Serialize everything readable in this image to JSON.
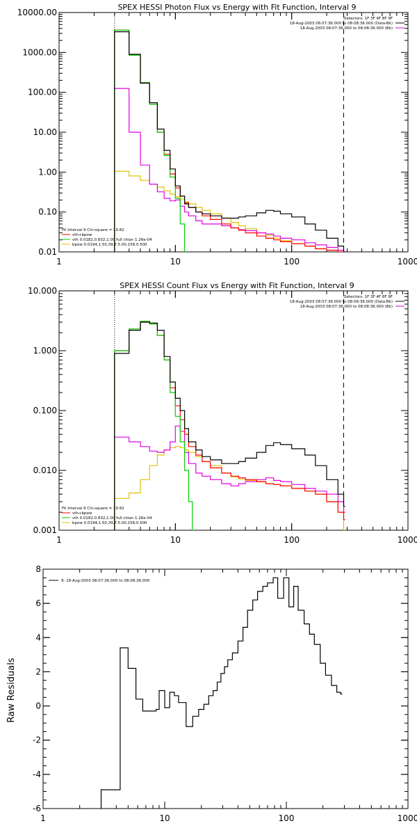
{
  "colors": {
    "data": "#000000",
    "total": "#ff0000",
    "vth": "#00d000",
    "bpow": "#e0c000",
    "background": "#e000e0"
  },
  "chart_data": [
    {
      "type": "line",
      "title": "SPEX HESSI Photon Flux vs Energy with Fit Function, Interval 9",
      "xscale": "log",
      "yscale": "log",
      "xlim": [
        1,
        1000
      ],
      "ylim": [
        0.01,
        10000
      ],
      "xticks": [
        "1",
        "10",
        "100",
        "1000"
      ],
      "yticks": [
        "0.01",
        "0.10",
        "1.00",
        "10.00",
        "100.00",
        "1000.00",
        "10000.00"
      ],
      "vlines": [
        {
          "x": 3,
          "style": "dotted"
        },
        {
          "x": 280,
          "style": "dashed"
        }
      ],
      "legend_top_right": [
        {
          "text": "Detectors: 1F 3F 4F 8F 9F",
          "color": "#000000"
        },
        {
          "text": "18-Aug-2003 08:07:36.000 to 08:08:36.000 (Data-Bk)",
          "color": "#000000"
        },
        {
          "text": "18-Aug-2003 08:07:36.000 to 08:08:36.000 (Bk)",
          "color": "#e000e0"
        }
      ],
      "legend_bottom_left": [
        {
          "text": "Fit Interval 9   Chi-square = 19.82",
          "color": "#000000"
        },
        {
          "text": "vth+bpow",
          "color": "#ff0000"
        },
        {
          "text": "vth 0.0182,0.832,1.00  full chian 1.26e-04",
          "color": "#00d000"
        },
        {
          "text": "bpow 0.0194,1.50,39.7,5.00,158,0.500",
          "color": "#e0c000"
        }
      ],
      "series": [
        {
          "role": "data",
          "x": [
            3,
            4,
            5,
            6,
            7,
            8,
            9,
            10,
            11,
            12,
            13,
            15,
            17,
            20,
            25,
            30,
            35,
            40,
            50,
            60,
            70,
            80,
            100,
            130,
            160,
            200,
            250,
            280
          ],
          "y": [
            3300,
            900,
            170,
            55,
            12,
            3.5,
            1.2,
            0.45,
            0.25,
            0.16,
            0.13,
            0.1,
            0.09,
            0.08,
            0.07,
            0.07,
            0.075,
            0.08,
            0.095,
            0.11,
            0.105,
            0.09,
            0.075,
            0.05,
            0.035,
            0.022,
            0.014,
            0.01
          ]
        },
        {
          "role": "total",
          "x": [
            3,
            4,
            5,
            6,
            7,
            8,
            9,
            10,
            11,
            12,
            13,
            15,
            17,
            20,
            25,
            30,
            35,
            40,
            50,
            60,
            70,
            80,
            100,
            130,
            160,
            200,
            250,
            280
          ],
          "y": [
            3600,
            850,
            175,
            50,
            10,
            2.8,
            0.9,
            0.4,
            0.25,
            0.17,
            0.13,
            0.1,
            0.08,
            0.065,
            0.05,
            0.04,
            0.035,
            0.03,
            0.025,
            0.022,
            0.02,
            0.018,
            0.016,
            0.014,
            0.012,
            0.011,
            0.01,
            0.01
          ]
        },
        {
          "role": "vth",
          "x": [
            3,
            4,
            5,
            6,
            7,
            8,
            9,
            10,
            11,
            12
          ],
          "y": [
            3600,
            850,
            175,
            50,
            10,
            2.6,
            0.75,
            0.22,
            0.05,
            0.01
          ]
        },
        {
          "role": "bpow",
          "x": [
            3,
            4,
            5,
            6,
            7,
            8,
            9,
            10,
            11,
            12,
            13,
            15,
            17,
            20,
            25,
            30,
            35,
            40,
            50,
            60,
            70,
            80,
            100,
            130,
            160,
            200,
            250,
            280
          ],
          "y": [
            1.05,
            0.8,
            0.62,
            0.5,
            0.42,
            0.34,
            0.28,
            0.24,
            0.21,
            0.18,
            0.16,
            0.13,
            0.11,
            0.09,
            0.07,
            0.055,
            0.045,
            0.038,
            0.03,
            0.026,
            0.022,
            0.019,
            0.016,
            0.014,
            0.012,
            0.011,
            0.01,
            0.01
          ]
        },
        {
          "role": "background",
          "x": [
            3,
            4,
            5,
            6,
            7,
            8,
            9,
            10,
            11,
            12,
            13,
            15,
            17,
            20,
            25,
            30,
            35,
            40,
            50,
            60,
            70,
            80,
            100,
            130,
            160,
            200,
            250,
            280
          ],
          "y": [
            125,
            10,
            1.5,
            0.5,
            0.32,
            0.22,
            0.19,
            0.2,
            0.14,
            0.1,
            0.08,
            0.06,
            0.05,
            0.05,
            0.045,
            0.04,
            0.036,
            0.034,
            0.03,
            0.028,
            0.025,
            0.022,
            0.02,
            0.017,
            0.015,
            0.013,
            0.011,
            0.01
          ]
        }
      ]
    },
    {
      "type": "line",
      "title": "SPEX HESSI Count Flux vs Energy with Fit Function, Interval 9",
      "xscale": "log",
      "yscale": "log",
      "xlim": [
        1,
        1000
      ],
      "ylim": [
        0.001,
        10
      ],
      "xticks": [
        "1",
        "10",
        "100",
        "1000"
      ],
      "yticks": [
        "0.001",
        "0.010",
        "0.100",
        "1.000",
        "10.000"
      ],
      "vlines": [
        {
          "x": 3,
          "style": "dotted"
        },
        {
          "x": 280,
          "style": "dashed"
        }
      ],
      "legend_top_right": [
        {
          "text": "Detectors: 1F 3F 4F 8F 9F",
          "color": "#000000"
        },
        {
          "text": "18-Aug-2003 08:07:36.000 to 08:08:36.000 (Data-Bk)",
          "color": "#000000"
        },
        {
          "text": "18-Aug-2003 08:07:36.000 to 08:08:36.000 (Bk)",
          "color": "#e000e0"
        }
      ],
      "legend_bottom_left": [
        {
          "text": "Fit Interval 9   Chi-square = 19.82",
          "color": "#000000"
        },
        {
          "text": "vth+bpow",
          "color": "#ff0000"
        },
        {
          "text": "vth 0.0182,0.832,1.00  full chian 1.26e-04",
          "color": "#00d000"
        },
        {
          "text": "bpow 0.0194,1.50,39.7,5.00,158,0.500",
          "color": "#e0c000"
        }
      ],
      "series": [
        {
          "role": "data",
          "x": [
            3,
            4,
            5,
            6,
            7,
            8,
            9,
            10,
            11,
            12,
            13,
            15,
            17,
            20,
            25,
            30,
            35,
            40,
            50,
            60,
            70,
            80,
            100,
            130,
            160,
            200,
            250,
            280
          ],
          "y": [
            0.9,
            2.2,
            3.0,
            2.9,
            2.2,
            0.8,
            0.3,
            0.16,
            0.1,
            0.05,
            0.03,
            0.022,
            0.017,
            0.015,
            0.013,
            0.013,
            0.014,
            0.016,
            0.02,
            0.026,
            0.029,
            0.027,
            0.023,
            0.018,
            0.012,
            0.007,
            0.004,
            0.0025
          ]
        },
        {
          "role": "total",
          "x": [
            3,
            4,
            5,
            6,
            7,
            8,
            9,
            10,
            11,
            12,
            13,
            15,
            17,
            20,
            25,
            30,
            35,
            40,
            50,
            60,
            70,
            80,
            100,
            130,
            160,
            200,
            250,
            280
          ],
          "y": [
            1.0,
            2.3,
            3.1,
            2.8,
            1.8,
            0.7,
            0.24,
            0.12,
            0.07,
            0.04,
            0.025,
            0.018,
            0.014,
            0.011,
            0.009,
            0.008,
            0.0075,
            0.007,
            0.0065,
            0.006,
            0.0058,
            0.0055,
            0.005,
            0.0045,
            0.004,
            0.003,
            0.002,
            0.0015
          ]
        },
        {
          "role": "vth",
          "x": [
            3,
            4,
            5,
            6,
            7,
            8,
            9,
            10,
            11,
            12,
            13,
            14
          ],
          "y": [
            1.0,
            2.3,
            3.1,
            2.8,
            1.8,
            0.7,
            0.2,
            0.08,
            0.03,
            0.01,
            0.003,
            0.001
          ]
        },
        {
          "role": "bpow",
          "x": [
            3,
            4,
            5,
            6,
            7,
            8,
            9,
            10,
            11,
            12,
            13,
            15,
            17,
            20,
            25,
            30,
            35,
            40,
            50,
            60,
            70,
            80,
            100,
            130,
            160,
            200,
            250,
            280
          ],
          "y": [
            0.0034,
            0.0042,
            0.007,
            0.012,
            0.018,
            0.022,
            0.024,
            0.025,
            0.024,
            0.022,
            0.02,
            0.017,
            0.014,
            0.012,
            0.009,
            0.0078,
            0.0072,
            0.0068,
            0.0064,
            0.006,
            0.0058,
            0.0055,
            0.005,
            0.0045,
            0.004,
            0.003,
            0.002,
            0.001
          ]
        },
        {
          "role": "background",
          "x": [
            3,
            4,
            5,
            6,
            7,
            8,
            9,
            10,
            11,
            12,
            13,
            15,
            17,
            20,
            25,
            30,
            35,
            40,
            50,
            60,
            70,
            80,
            100,
            130,
            160,
            200,
            250,
            280
          ],
          "y": [
            0.036,
            0.03,
            0.025,
            0.021,
            0.02,
            0.022,
            0.03,
            0.055,
            0.045,
            0.02,
            0.013,
            0.009,
            0.008,
            0.007,
            0.006,
            0.0055,
            0.006,
            0.0065,
            0.007,
            0.0075,
            0.0068,
            0.0065,
            0.0058,
            0.005,
            0.0045,
            0.004,
            0.003,
            0.002
          ]
        }
      ]
    },
    {
      "type": "line",
      "title": "",
      "xscale": "log",
      "yscale": "linear",
      "xlim": [
        1,
        1000
      ],
      "ylim": [
        -6,
        8
      ],
      "ylabel": "Raw Residuals",
      "xticks": [
        "1",
        "10",
        "100",
        "1000"
      ],
      "yticks": [
        "-6",
        "-4",
        "-2",
        "0",
        "2",
        "4",
        "6",
        "8"
      ],
      "legend_top_left": [
        {
          "text": "9: 18-Aug-2003 08:07:36.000 to 08:08:36.000",
          "color": "#000000"
        }
      ],
      "series": [
        {
          "role": "data",
          "x": [
            3,
            4.3,
            5,
            5.8,
            6.6,
            7.5,
            8.5,
            9,
            10,
            11,
            12,
            13,
            15,
            17,
            19,
            21,
            23,
            25,
            27,
            29,
            31,
            33,
            36,
            40,
            44,
            48,
            53,
            58,
            64,
            70,
            78,
            85,
            95,
            105,
            115,
            125,
            140,
            155,
            170,
            190,
            210,
            235,
            260,
            280
          ],
          "y": [
            -4.9,
            3.4,
            2.2,
            0.4,
            -0.3,
            -0.3,
            -0.2,
            0.9,
            -0.1,
            0.8,
            0.6,
            0.2,
            -1.2,
            -0.6,
            -0.2,
            0.1,
            0.6,
            0.9,
            1.4,
            1.9,
            2.3,
            2.7,
            3.1,
            3.8,
            4.6,
            5.6,
            6.2,
            6.7,
            7.0,
            7.2,
            7.5,
            6.3,
            7.5,
            5.8,
            7.0,
            5.6,
            4.8,
            4.2,
            3.6,
            2.5,
            1.8,
            1.2,
            0.8,
            0.7
          ]
        }
      ]
    }
  ]
}
